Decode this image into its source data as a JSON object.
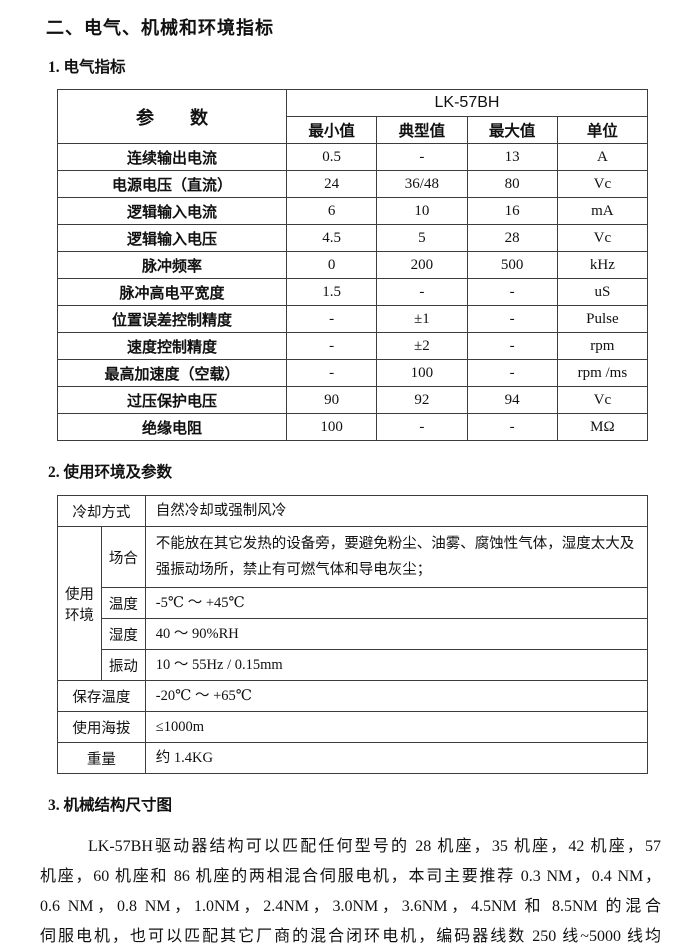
{
  "title": "二、电气、机械和环境指标",
  "electrical": {
    "heading": "1. 电气指标",
    "param_header": "参　　数",
    "model": "LK-57BH",
    "columns": [
      "最小值",
      "典型值",
      "最大值",
      "单位"
    ],
    "rows": [
      {
        "param": "连续输出电流",
        "min": "0.5",
        "typ": "-",
        "max": "13",
        "unit": "A"
      },
      {
        "param": "电源电压（直流）",
        "min": "24",
        "typ": "36/48",
        "max": "80",
        "unit": "Vc"
      },
      {
        "param": "逻辑输入电流",
        "min": "6",
        "typ": "10",
        "max": "16",
        "unit": "mA"
      },
      {
        "param": "逻辑输入电压",
        "min": "4.5",
        "typ": "5",
        "max": "28",
        "unit": "Vc"
      },
      {
        "param": "脉冲频率",
        "min": "0",
        "typ": "200",
        "max": "500",
        "unit": "kHz"
      },
      {
        "param": "脉冲高电平宽度",
        "min": "1.5",
        "typ": "-",
        "max": "-",
        "unit": "uS"
      },
      {
        "param": "位置误差控制精度",
        "min": "-",
        "typ": "±1",
        "max": "-",
        "unit": "Pulse"
      },
      {
        "param": "速度控制精度",
        "min": "-",
        "typ": "±2",
        "max": "-",
        "unit": "rpm"
      },
      {
        "param": "最高加速度（空载）",
        "min": "-",
        "typ": "100",
        "max": "-",
        "unit": "rpm /ms"
      },
      {
        "param": "过压保护电压",
        "min": "90",
        "typ": "92",
        "max": "94",
        "unit": "Vc"
      },
      {
        "param": "绝缘电阻",
        "min": "100",
        "typ": "-",
        "max": "-",
        "unit": "MΩ"
      }
    ]
  },
  "environment": {
    "heading": "2. 使用环境及参数",
    "cooling": {
      "label": "冷却方式",
      "value": "自然冷却或强制风冷"
    },
    "usage_env": {
      "label": "使用环境",
      "rows": [
        {
          "label": "场合",
          "value": "不能放在其它发热的设备旁，要避免粉尘、油雾、腐蚀性气体，湿度太大及强振动场所，禁止有可燃气体和导电灰尘；"
        },
        {
          "label": "温度",
          "value": "-5℃ ～ +45℃"
        },
        {
          "label": "湿度",
          "value": "40 ～ 90%RH"
        },
        {
          "label": "振动",
          "value": "10 ～ 55Hz / 0.15mm"
        }
      ]
    },
    "extra_rows": [
      {
        "label": "保存温度",
        "value": "-20℃ ～ +65℃"
      },
      {
        "label": "使用海拔",
        "value": "≤1000m"
      },
      {
        "label": "重量",
        "value": "约 1.4KG"
      }
    ]
  },
  "mechanical": {
    "heading": "3. 机械结构尺寸图",
    "lines": [
      "LK-57BH驱动器结构可以匹配任何型号的 28 机座，35 机座，42 机座，57",
      "机座，60 机座和 86 机座的两相混合伺服电机，本司主要推荐 0.3 NM，0.4 NM，",
      "0.6 NM，0.8 NM，1.0NM，2.4NM，3.0NM，3.6NM，4.5NM 和 8.5NM 的混合",
      "伺服电机，也可以匹配其它厂商的混合闭环电机，编码器线数 250 线~5000 线均"
    ]
  }
}
